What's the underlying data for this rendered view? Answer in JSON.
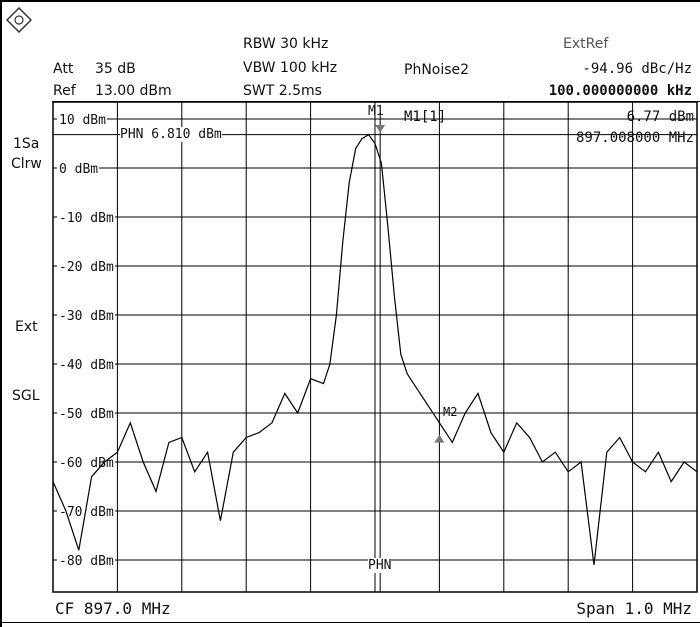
{
  "header": {
    "att_label": "Att",
    "att_value": "35 dB",
    "ref_label": "Ref",
    "ref_value": "13.00 dBm",
    "rbw": "RBW 30 kHz",
    "vbw": "VBW 100 kHz",
    "swt": "SWT 2.5ms",
    "mode": "PhNoise2",
    "extref": "ExtRef",
    "phnoise_value": "-94.96 dBc/Hz",
    "offset_value": "100.000000000 kHz"
  },
  "side_labels": {
    "trace": "1Sa",
    "detector": "Clrw",
    "ext": "Ext",
    "sgl": "SGL"
  },
  "marker": {
    "label": "M1[1]",
    "m1": "M1",
    "m2": "M2",
    "level": "6.77 dBm",
    "freq": "897.008000 MHz",
    "phn_line": "PHN  6.810 dBm",
    "phn_bottom": "PHN"
  },
  "footer": {
    "cf": "CF 897.0 MHz",
    "span": "Span 1.0 MHz"
  },
  "colors": {
    "trace": "#000000",
    "grid": "#000000",
    "background": "#ffffff"
  },
  "chart_data": {
    "type": "line",
    "title": "",
    "xlabel": "",
    "ylabel": "",
    "center_freq_mhz": 897.0,
    "span_mhz": 1.0,
    "xlim": [
      896.5,
      897.5
    ],
    "ylim": [
      -90,
      10
    ],
    "y_ticks": [
      "10 dBm",
      "0 dBm",
      "-10 dBm",
      "-20 dBm",
      "-30 dBm",
      "-40 dBm",
      "-50 dBm",
      "-60 dBm",
      "-70 dBm",
      "-80 dBm"
    ],
    "y_tick_values": [
      10,
      0,
      -10,
      -20,
      -30,
      -40,
      -50,
      -60,
      -70,
      -80
    ],
    "reference_line_dbm": 6.81,
    "grid": true,
    "series": [
      {
        "x": [
          896.5,
          896.52,
          896.54,
          896.56,
          896.58,
          896.6,
          896.62,
          896.64,
          896.66,
          896.68,
          896.7,
          896.72,
          896.74,
          896.76,
          896.78,
          896.8,
          896.82,
          896.84,
          896.86,
          896.88,
          896.9,
          896.92,
          896.93,
          896.94,
          896.95,
          896.96,
          896.97,
          896.98,
          896.99,
          897.0,
          897.01,
          897.02,
          897.03,
          897.04,
          897.05,
          897.06,
          897.08,
          897.1,
          897.12,
          897.14,
          897.16,
          897.18,
          897.2,
          897.22,
          897.24,
          897.26,
          897.28,
          897.3,
          897.32,
          897.34,
          897.36,
          897.38,
          897.4,
          897.42,
          897.44,
          897.46,
          897.48,
          897.5
        ],
        "y": [
          -64,
          -70,
          -78,
          -63,
          -60,
          -58,
          -52,
          -60,
          -66,
          -56,
          -55,
          -62,
          -58,
          -72,
          -58,
          -55,
          -54,
          -52,
          -46,
          -50,
          -43,
          -44,
          -40,
          -30,
          -15,
          -3,
          4,
          6,
          6.8,
          5,
          1,
          -12,
          -26,
          -38,
          -42,
          -44,
          -48,
          -52,
          -56,
          -50,
          -46,
          -54,
          -58,
          -52,
          -55,
          -60,
          -58,
          -62,
          -60,
          -81,
          -58,
          -55,
          -60,
          -62,
          -58,
          -64,
          -60,
          -62
        ]
      }
    ],
    "markers": [
      {
        "name": "M1",
        "x": 897.008,
        "y": 6.77
      },
      {
        "name": "M2",
        "x": 897.1,
        "y": -54
      }
    ]
  }
}
